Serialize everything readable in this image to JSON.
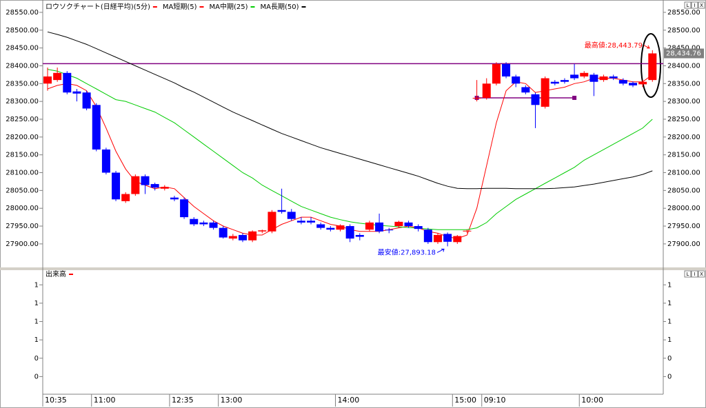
{
  "chart_data": {
    "type": "candlestick",
    "title": "ロウソクチャート(日経平均)(5分)",
    "title_color": "#ff0000",
    "pane_buttons": [
      "L",
      "I",
      "X"
    ],
    "categories": [
      "10:35",
      null,
      null,
      null,
      null,
      "11:00",
      null,
      null,
      null,
      null,
      null,
      null,
      null,
      "12:35",
      null,
      null,
      null,
      null,
      "13:00",
      null,
      null,
      null,
      null,
      null,
      null,
      null,
      null,
      null,
      null,
      null,
      "14:00",
      null,
      null,
      null,
      null,
      null,
      null,
      null,
      null,
      null,
      null,
      null,
      "15:00",
      null,
      null,
      "09:10",
      null,
      null,
      null,
      null,
      null,
      null,
      null,
      null,
      null,
      "10:00",
      null,
      null,
      null,
      null,
      null,
      null,
      null
    ],
    "open": [
      28350,
      28360,
      28380,
      28328,
      28325,
      28290,
      28165,
      28100,
      28020,
      28040,
      28090,
      28068,
      28055,
      28030,
      28025,
      27970,
      27960,
      27960,
      27945,
      27915,
      27925,
      27910,
      27935,
      27935,
      27995,
      27990,
      27965,
      27965,
      27955,
      27945,
      27940,
      27950,
      27925,
      27940,
      27960,
      27940,
      27950,
      27960,
      27950,
      27940,
      27905,
      27928,
      27905,
      27935,
      28310,
      28310,
      28350,
      28405,
      28370,
      28340,
      28320,
      28285,
      28355,
      28360,
      28375,
      28370,
      28375,
      28360,
      28370,
      28360,
      28352,
      28348,
      28360
    ],
    "high": [
      28395,
      28395,
      28385,
      28335,
      28330,
      28295,
      28170,
      28105,
      28045,
      28095,
      28095,
      28072,
      28065,
      28035,
      28030,
      27975,
      27965,
      27965,
      27950,
      27928,
      27930,
      27938,
      27940,
      27995,
      28055,
      27998,
      27975,
      27975,
      27960,
      27950,
      27955,
      27955,
      27930,
      27965,
      27985,
      27945,
      27965,
      27965,
      27955,
      27945,
      27930,
      27932,
      27925,
      27940,
      28360,
      28365,
      28410,
      28410,
      28375,
      28345,
      28325,
      28370,
      28360,
      28365,
      28405,
      28385,
      28380,
      28375,
      28375,
      28365,
      28356,
      28360,
      28443.79
    ],
    "low": [
      28330,
      28355,
      28320,
      28300,
      28275,
      28160,
      28095,
      28020,
      28015,
      28035,
      28040,
      28050,
      28050,
      28020,
      27970,
      27950,
      27950,
      27940,
      27915,
      27910,
      27905,
      27905,
      27930,
      27930,
      27985,
      27965,
      27955,
      27955,
      27940,
      27935,
      27935,
      27905,
      27910,
      27935,
      27930,
      27930,
      27945,
      27945,
      27935,
      27900,
      27900,
      27893.18,
      27900,
      27930,
      28300,
      28305,
      28345,
      28365,
      28340,
      28320,
      28225,
      28280,
      28345,
      28350,
      28360,
      28365,
      28315,
      28355,
      28360,
      28345,
      28340,
      28340,
      28355
    ],
    "close": [
      28370,
      28380,
      28325,
      28322,
      28280,
      28165,
      28100,
      28025,
      28040,
      28090,
      28065,
      28058,
      28060,
      28025,
      27975,
      27955,
      27955,
      27945,
      27918,
      27922,
      27910,
      27935,
      27938,
      27990,
      27990,
      27970,
      27960,
      27960,
      27945,
      27940,
      27952,
      27915,
      27920,
      27960,
      27935,
      27938,
      27962,
      27950,
      27942,
      27905,
      27925,
      27906,
      27922,
      27937,
      28310,
      28350,
      28405,
      28370,
      28350,
      28325,
      28290,
      28365,
      28350,
      28355,
      28365,
      28380,
      28355,
      28370,
      28365,
      28350,
      28345,
      28355,
      28434.76
    ],
    "up_color": "#ff0000",
    "down_color": "#0000ff",
    "series": [
      {
        "name": "MA短期(5)",
        "color": "#ff0000",
        "values": [
          28335,
          28345,
          28350,
          28345,
          28330,
          28285,
          28225,
          28160,
          28110,
          28075,
          28065,
          28055,
          28060,
          28055,
          28030,
          28005,
          27985,
          27965,
          27950,
          27940,
          27930,
          27925,
          27925,
          27940,
          27955,
          27965,
          27975,
          27975,
          27965,
          27955,
          27950,
          27940,
          27935,
          27935,
          27935,
          27940,
          27945,
          27950,
          27945,
          27935,
          27930,
          27920,
          27915,
          27925,
          28000,
          28120,
          28240,
          28330,
          28355,
          28350,
          28325,
          28330,
          28335,
          28340,
          28350,
          28355,
          28365,
          28365,
          28365,
          28360,
          28355,
          28355,
          28375
        ]
      },
      {
        "name": "MA中期(25)",
        "color": "#00cc00",
        "values": [
          28390,
          28385,
          28375,
          28365,
          28350,
          28335,
          28320,
          28305,
          28300,
          28290,
          28280,
          28270,
          28255,
          28240,
          28220,
          28200,
          28180,
          28160,
          28140,
          28120,
          28100,
          28085,
          28065,
          28050,
          28035,
          28020,
          28005,
          27995,
          27985,
          27975,
          27968,
          27962,
          27958,
          27955,
          27952,
          27950,
          27948,
          27946,
          27944,
          27942,
          27940,
          27940,
          27940,
          27940,
          27945,
          27960,
          27985,
          28005,
          28025,
          28040,
          28055,
          28070,
          28085,
          28100,
          28115,
          28135,
          28150,
          28165,
          28180,
          28195,
          28210,
          28225,
          28250
        ]
      },
      {
        "name": "MA長期(50)",
        "color": "#000000",
        "values": [
          28495,
          28488,
          28480,
          28470,
          28460,
          28448,
          28436,
          28424,
          28412,
          28400,
          28388,
          28376,
          28364,
          28352,
          28338,
          28326,
          28312,
          28298,
          28284,
          28270,
          28258,
          28246,
          28234,
          28222,
          28210,
          28200,
          28190,
          28180,
          28170,
          28162,
          28154,
          28146,
          28138,
          28130,
          28122,
          28114,
          28106,
          28098,
          28090,
          28080,
          28070,
          28062,
          28056,
          28055,
          28055,
          28056,
          28056,
          28056,
          28055,
          28055,
          28055,
          28055,
          28056,
          28058,
          28060,
          28064,
          28068,
          28073,
          28078,
          28083,
          28088,
          28095,
          28105
        ]
      }
    ],
    "hlines": [
      {
        "value": 28406,
        "color": "#800080"
      },
      {
        "value": 28310,
        "from": 44,
        "to": 54,
        "color": "#800080"
      }
    ],
    "annotations": [
      {
        "text": "最高値:28,443.79",
        "value": 28443.79,
        "color": "#ff0000"
      },
      {
        "text": "最安値:27,893.18",
        "value": 27893.18,
        "color": "#0000ff"
      }
    ],
    "current": {
      "label": "28,434.76",
      "value": 28434.76
    },
    "ylim": [
      27834,
      28575
    ],
    "yticks": [
      {
        "value": 27900,
        "label": "27900.00"
      },
      {
        "value": 27950,
        "label": "27950.00"
      },
      {
        "value": 28000,
        "label": "28000.00"
      },
      {
        "value": 28050,
        "label": "28050.00"
      },
      {
        "value": 28100,
        "label": "28100.00"
      },
      {
        "value": 28150,
        "label": "28150.00"
      },
      {
        "value": 28200,
        "label": "28200.00"
      },
      {
        "value": 28250,
        "label": "28250.00"
      },
      {
        "value": 28300,
        "label": "28300.00"
      },
      {
        "value": 28350,
        "label": "28350.00"
      },
      {
        "value": 28400,
        "label": "28400.00"
      },
      {
        "value": 28450,
        "label": "28450.00"
      },
      {
        "value": 28500,
        "label": "28500.00"
      },
      {
        "value": 28550,
        "label": "28550.00"
      }
    ],
    "volume": {
      "title": "出来高",
      "color": "#ff0000",
      "ylim": [
        0,
        1.7
      ],
      "yticks": [
        {
          "value": 1.5,
          "label": "1"
        },
        {
          "value": 1.25,
          "label": "1"
        },
        {
          "value": 1,
          "label": "1"
        },
        {
          "value": 0.75,
          "label": "1"
        },
        {
          "value": 0.5,
          "label": "0"
        },
        {
          "value": 0.25,
          "label": "0"
        }
      ]
    }
  }
}
